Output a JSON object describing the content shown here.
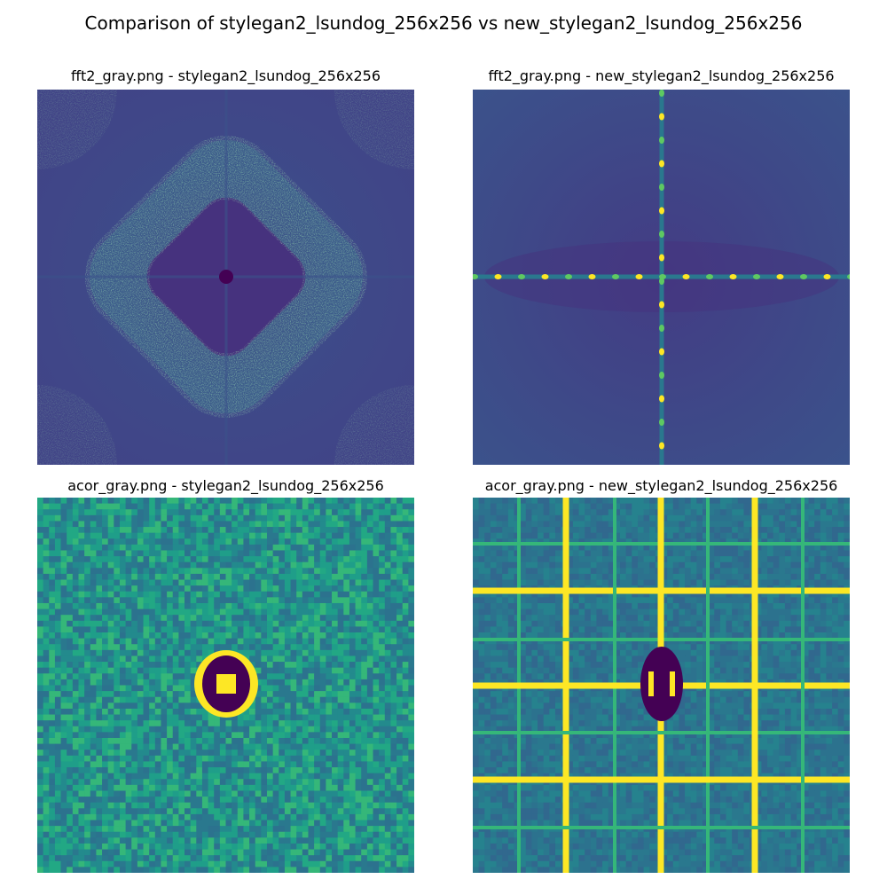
{
  "figure": {
    "title": "Comparison of stylegan2_lsundog_256x256 vs new_stylegan2_lsundog_256x256"
  },
  "panels": [
    {
      "title": "fft2_gray.png - stylegan2_lsundog_256x256",
      "kind": "fft-ring"
    },
    {
      "title": "fft2_gray.png - new_stylegan2_lsundog_256x256",
      "kind": "fft-cross"
    },
    {
      "title": "acor_gray.png - stylegan2_lsundog_256x256",
      "kind": "acor-noise"
    },
    {
      "title": "acor_gray.png - new_stylegan2_lsundog_256x256",
      "kind": "acor-grid"
    }
  ],
  "colors": {
    "viridis_dark": "#440154",
    "viridis_blue": "#3b528b",
    "viridis_teal": "#21918c",
    "viridis_green": "#5ec962",
    "viridis_yellow": "#fde725"
  }
}
